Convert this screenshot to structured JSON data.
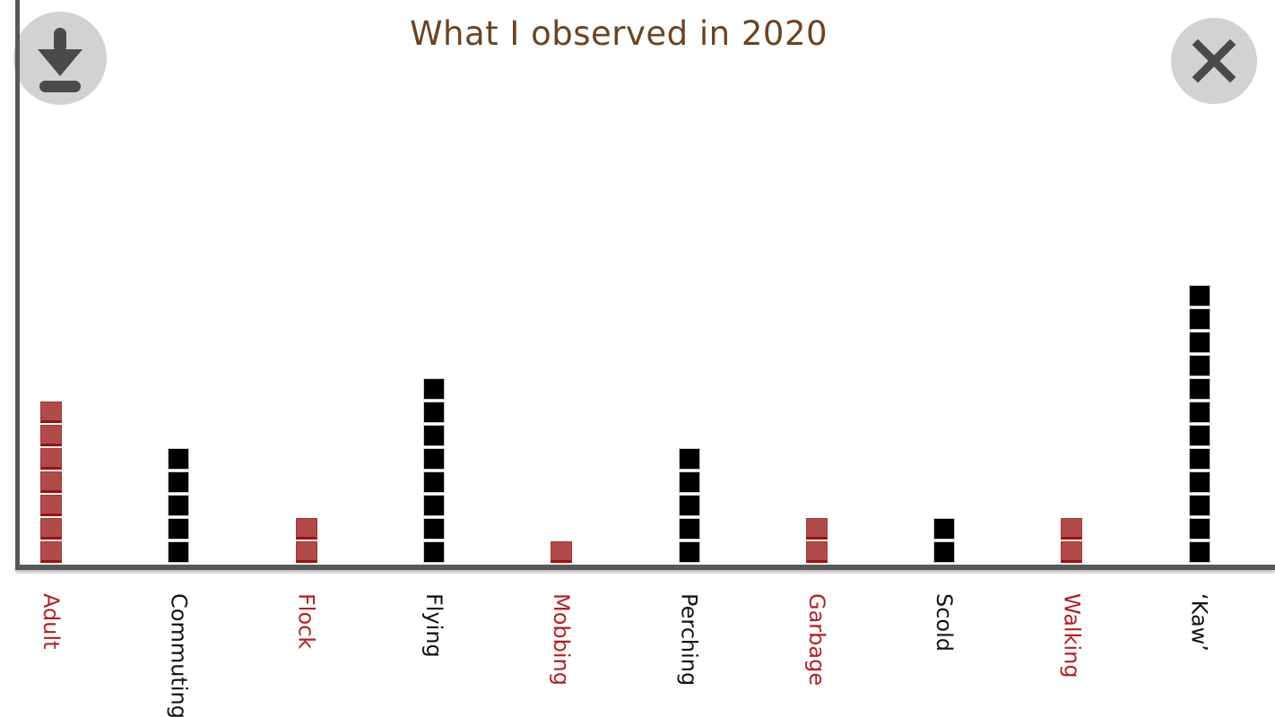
{
  "title": "What I observed in 2020",
  "colors": {
    "title": "#6b4423",
    "axis": "#58585a",
    "button_background": "#d2d2d2",
    "button_glyph": "#4a4a4a",
    "red_square_fill": "#b24a4a",
    "red_square_edge": "#9b1111",
    "black_square_fill": "#000000",
    "black_square_edge": "#c9c9c9",
    "red_label": "#b22222",
    "black_label": "#111111"
  },
  "chart_data": {
    "type": "bar",
    "variant": "stacked-squares-pictograph",
    "title": "What I observed in 2020",
    "categories": [
      "Adult",
      "Commuting",
      "Flock",
      "Flying",
      "Mobbing",
      "Perching",
      "Garbage",
      "Scold",
      "Walking",
      "‘Kaw’"
    ],
    "values": [
      7,
      5,
      2,
      8,
      1,
      5,
      2,
      2,
      2,
      12
    ],
    "bar_colors": [
      "red",
      "black",
      "red",
      "black",
      "red",
      "black",
      "red",
      "black",
      "red",
      "black"
    ],
    "ylim": [
      0,
      12
    ],
    "grid": false,
    "legend": false,
    "x_axis": true,
    "y_axis": true
  }
}
